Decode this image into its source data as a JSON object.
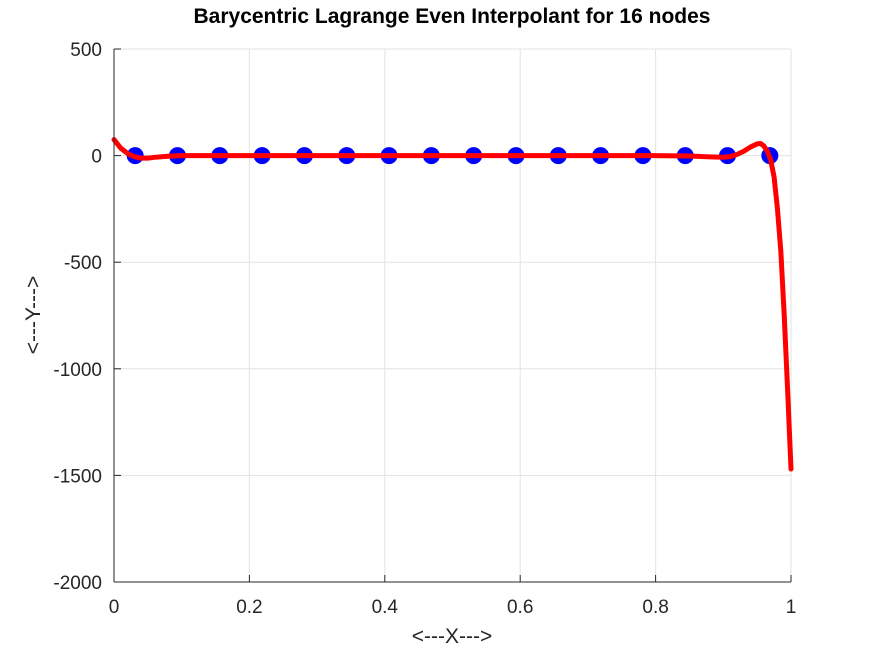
{
  "chart_data": {
    "type": "line",
    "title": "Barycentric Lagrange Even Interpolant for 16 nodes",
    "xlabel": "<---X--->",
    "ylabel": "<---Y--->",
    "xlim": [
      0,
      1
    ],
    "ylim": [
      -2000,
      500
    ],
    "x_ticks": [
      0,
      0.2,
      0.4,
      0.6,
      0.8,
      1
    ],
    "x_tick_labels": [
      "0",
      "0.2",
      "0.4",
      "0.6",
      "0.8",
      "1"
    ],
    "y_ticks": [
      500,
      0,
      -500,
      -1000,
      -1500,
      -2000
    ],
    "y_tick_labels": [
      "500",
      "0",
      "-500",
      "-1000",
      "-1500",
      "-2000"
    ],
    "grid": true,
    "series": [
      {
        "type": "scatter",
        "color": "#0000ff",
        "x": [
          0.03125,
          0.09375,
          0.15625,
          0.21875,
          0.28125,
          0.34375,
          0.40625,
          0.46875,
          0.53125,
          0.59375,
          0.65625,
          0.71875,
          0.78125,
          0.84375,
          0.90625,
          0.96875
        ],
        "y": [
          0,
          0,
          0,
          0,
          0,
          0,
          0,
          0,
          0,
          0,
          0,
          0,
          0,
          0,
          0,
          0
        ]
      },
      {
        "type": "line",
        "color": "#ff0000",
        "x": [
          0,
          0.01,
          0.02,
          0.03,
          0.04,
          0.05,
          0.06,
          0.08,
          0.1,
          0.15,
          0.2,
          0.3,
          0.4,
          0.5,
          0.6,
          0.7,
          0.8,
          0.85,
          0.88,
          0.9,
          0.91,
          0.92,
          0.93,
          0.94,
          0.95,
          0.955,
          0.96,
          0.965,
          0.97,
          0.975,
          0.98,
          0.985,
          0.99,
          0.995,
          1
        ],
        "y": [
          75,
          35,
          10,
          -5,
          -12,
          -12,
          -8,
          -3,
          0,
          0,
          0,
          0,
          0,
          0,
          0,
          0,
          0,
          -2,
          -6,
          -8,
          -5,
          5,
          20,
          40,
          55,
          57,
          45,
          20,
          -20,
          -100,
          -250,
          -450,
          -750,
          -1100,
          -1470
        ]
      }
    ]
  }
}
